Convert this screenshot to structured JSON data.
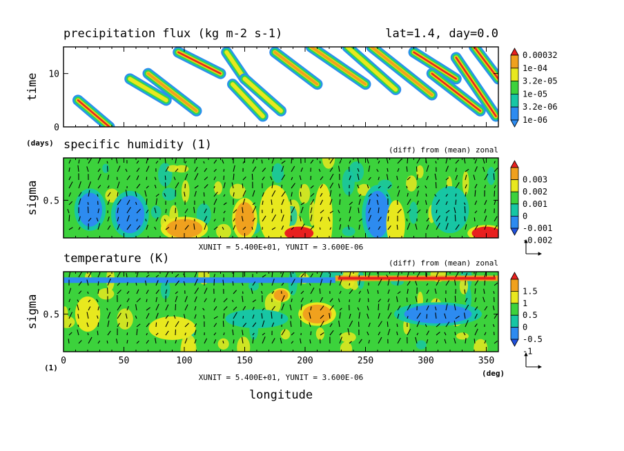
{
  "figure": {
    "header_title": "precipitation flux (kg m-2 s-1)",
    "header_info": "lat=1.4, day=0.0",
    "xlabel": "longitude",
    "xunit_label": "(deg)",
    "sigma_unit_label": "(1)",
    "time_unit_label": "(days)"
  },
  "chart_data": [
    {
      "type": "heatmap",
      "title": "precipitation flux (kg m-2 s-1)",
      "ylabel": "time",
      "y_unit": "(days)",
      "x_ticks": [
        0,
        50,
        100,
        150,
        200,
        250,
        300,
        350
      ],
      "y_ticks": [
        0,
        10
      ],
      "xlim": [
        0,
        360
      ],
      "ylim": [
        0,
        15
      ],
      "colorbar": {
        "labels": [
          "1e-06",
          "3.2e-06",
          "1e-05",
          "3.2e-05",
          "1e-04",
          "0.00032"
        ],
        "colors": [
          "#2d8bf0",
          "#17c6a4",
          "#3cd23c",
          "#e8e81e",
          "#f0a11e",
          "#e8201e"
        ]
      },
      "features": [
        {
          "kind": "streak",
          "x": [
            12,
            38
          ],
          "y": [
            5,
            0
          ],
          "level": 5
        },
        {
          "kind": "streak",
          "x": [
            55,
            85
          ],
          "y": [
            9,
            5
          ],
          "level": 3
        },
        {
          "kind": "streak",
          "x": [
            70,
            110
          ],
          "y": [
            10,
            3
          ],
          "level": 4
        },
        {
          "kind": "streak",
          "x": [
            95,
            130
          ],
          "y": [
            14,
            10
          ],
          "level": 5
        },
        {
          "kind": "streak",
          "x": [
            135,
            150
          ],
          "y": [
            14,
            9
          ],
          "level": 3
        },
        {
          "kind": "streak",
          "x": [
            140,
            165
          ],
          "y": [
            8,
            2
          ],
          "level": 3
        },
        {
          "kind": "streak",
          "x": [
            150,
            180
          ],
          "y": [
            9,
            3
          ],
          "level": 3
        },
        {
          "kind": "streak",
          "x": [
            175,
            210
          ],
          "y": [
            14,
            8
          ],
          "level": 4
        },
        {
          "kind": "streak",
          "x": [
            205,
            250
          ],
          "y": [
            15,
            8
          ],
          "level": 4
        },
        {
          "kind": "streak",
          "x": [
            235,
            275
          ],
          "y": [
            15,
            7
          ],
          "level": 3
        },
        {
          "kind": "streak",
          "x": [
            255,
            305
          ],
          "y": [
            15,
            6
          ],
          "level": 4
        },
        {
          "kind": "streak",
          "x": [
            290,
            325
          ],
          "y": [
            14,
            9
          ],
          "level": 5
        },
        {
          "kind": "streak",
          "x": [
            305,
            345
          ],
          "y": [
            10,
            3
          ],
          "level": 5
        },
        {
          "kind": "streak",
          "x": [
            325,
            358
          ],
          "y": [
            13,
            2
          ],
          "level": 5
        },
        {
          "kind": "streak",
          "x": [
            340,
            360
          ],
          "y": [
            15,
            9
          ],
          "level": 5
        }
      ]
    },
    {
      "type": "heatmap",
      "title": "specific humidity (1)",
      "subtitle": "(diff) from (mean) zonal",
      "ylabel": "sigma",
      "x_ticks": [
        0,
        50,
        100,
        150,
        200,
        250,
        300,
        350
      ],
      "y_ticks": [
        0.5
      ],
      "xlim": [
        0,
        360
      ],
      "ylim": [
        0.1,
        0.95
      ],
      "vector_units": "XUNIT = 5.400E+01, YUNIT = 3.600E-06",
      "colorbar": {
        "labels": [
          "0.003",
          "0.002",
          "0.001",
          "0",
          "-0.001",
          "-0.002"
        ],
        "colors": [
          "#e8201e",
          "#f0a11e",
          "#e8e81e",
          "#3cd23c",
          "#17c6a4",
          "#2d8bf0",
          "#1e50dc"
        ]
      },
      "features": [
        {
          "kind": "blob",
          "x": 22,
          "y": 0.4,
          "rx": 10,
          "ry": 0.18,
          "value": -0.002
        },
        {
          "kind": "blob",
          "x": 55,
          "y": 0.35,
          "rx": 12,
          "ry": 0.2,
          "value": -0.002
        },
        {
          "kind": "blob",
          "x": 100,
          "y": 0.2,
          "rx": 15,
          "ry": 0.1,
          "value": 0.002
        },
        {
          "kind": "blob",
          "x": 150,
          "y": 0.3,
          "rx": 8,
          "ry": 0.18,
          "value": 0.002
        },
        {
          "kind": "blob",
          "x": 175,
          "y": 0.35,
          "rx": 10,
          "ry": 0.25,
          "value": 0.001
        },
        {
          "kind": "blob",
          "x": 195,
          "y": 0.15,
          "rx": 12,
          "ry": 0.07,
          "value": 0.003
        },
        {
          "kind": "blob",
          "x": 215,
          "y": 0.3,
          "rx": 6,
          "ry": 0.3,
          "value": 0.001
        },
        {
          "kind": "blob",
          "x": 260,
          "y": 0.35,
          "rx": 10,
          "ry": 0.25,
          "value": -0.002
        },
        {
          "kind": "blob",
          "x": 275,
          "y": 0.25,
          "rx": 6,
          "ry": 0.2,
          "value": 0.001
        },
        {
          "kind": "blob",
          "x": 320,
          "y": 0.4,
          "rx": 12,
          "ry": 0.2,
          "value": -0.001
        },
        {
          "kind": "blob",
          "x": 350,
          "y": 0.15,
          "rx": 12,
          "ry": 0.07,
          "value": 0.003
        }
      ]
    },
    {
      "type": "heatmap",
      "title": "temperature (K)",
      "subtitle": "(diff) from (mean) zonal",
      "ylabel": "sigma",
      "x_ticks": [
        0,
        50,
        100,
        150,
        200,
        250,
        300,
        350
      ],
      "y_ticks": [
        0.5
      ],
      "xlim": [
        0,
        360
      ],
      "ylim": [
        0.1,
        0.95
      ],
      "vector_units": "XUNIT = 5.400E+01, YUNIT = 3.600E-06",
      "colorbar": {
        "labels": [
          "1.5",
          "1",
          "0.5",
          "0",
          "-0.5",
          "-1"
        ],
        "colors": [
          "#e8201e",
          "#f0a11e",
          "#e8e81e",
          "#3cd23c",
          "#17c6a4",
          "#2d8bf0",
          "#1e50dc"
        ]
      },
      "features": [
        {
          "kind": "band",
          "x": [
            225,
            360
          ],
          "y": 0.88,
          "value": 1.5
        },
        {
          "kind": "band",
          "x": [
            0,
            225
          ],
          "y": 0.86,
          "value": -1
        },
        {
          "kind": "blob",
          "x": 210,
          "y": 0.5,
          "rx": 12,
          "ry": 0.1,
          "value": 1
        },
        {
          "kind": "blob",
          "x": 180,
          "y": 0.7,
          "rx": 6,
          "ry": 0.06,
          "value": 1
        },
        {
          "kind": "blob",
          "x": 310,
          "y": 0.5,
          "rx": 28,
          "ry": 0.1,
          "value": -1
        },
        {
          "kind": "blob",
          "x": 160,
          "y": 0.45,
          "rx": 20,
          "ry": 0.08,
          "value": -0.5
        },
        {
          "kind": "blob",
          "x": 20,
          "y": 0.5,
          "rx": 8,
          "ry": 0.15,
          "value": 0.5
        },
        {
          "kind": "blob",
          "x": 90,
          "y": 0.35,
          "rx": 15,
          "ry": 0.1,
          "value": 0.5
        }
      ]
    }
  ]
}
